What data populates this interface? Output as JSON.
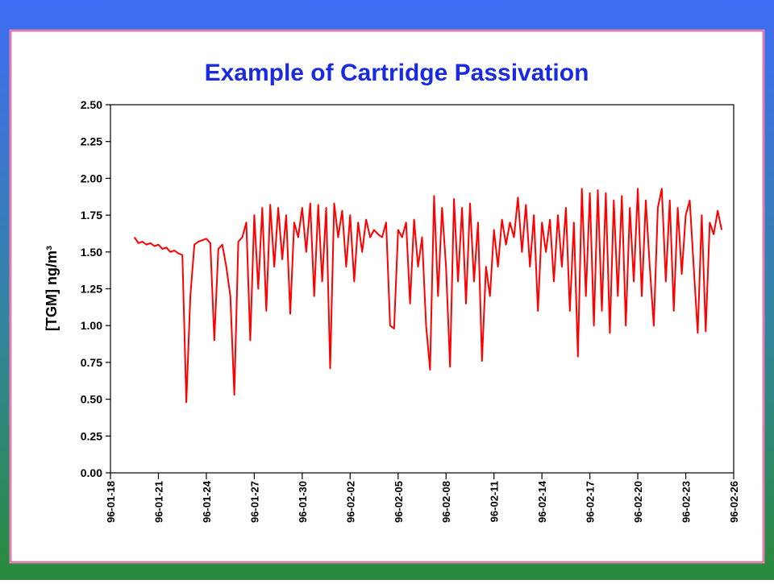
{
  "chart_data": {
    "type": "line",
    "title": "Example of Cartridge Passivation",
    "y_label": "[TGM] ng/m³",
    "x": [
      1.5,
      1.75,
      2,
      2.25,
      2.5,
      2.75,
      3,
      3.25,
      3.5,
      3.75,
      4,
      4.25,
      4.5,
      4.75,
      5,
      5.25,
      5.5,
      5.75,
      6,
      6.25,
      6.5,
      6.75,
      7,
      7.25,
      7.5,
      7.75,
      8,
      8.25,
      8.5,
      8.75,
      9,
      9.25,
      9.5,
      9.75,
      10,
      10.25,
      10.5,
      10.75,
      11,
      11.25,
      11.5,
      11.75,
      12,
      12.25,
      12.5,
      12.75,
      13,
      13.25,
      13.5,
      13.75,
      14,
      14.25,
      14.5,
      14.75,
      15,
      15.25,
      15.5,
      15.75,
      16,
      16.25,
      16.5,
      16.75,
      17,
      17.25,
      17.5,
      17.75,
      18,
      18.25,
      18.5,
      18.75,
      19,
      19.25,
      19.5,
      19.75,
      20,
      20.25,
      20.5,
      20.75,
      21,
      21.25,
      21.5,
      21.75,
      22,
      22.25,
      22.5,
      22.75,
      23,
      23.25,
      23.5,
      23.75,
      24,
      24.25,
      24.5,
      24.75,
      25,
      25.25,
      25.5,
      25.75,
      26,
      26.25,
      26.5,
      26.75,
      27,
      27.25,
      27.5,
      27.75,
      28,
      28.25,
      28.5,
      28.75,
      29,
      29.25,
      29.5,
      29.75,
      30,
      30.25,
      30.5,
      30.75,
      31,
      31.25,
      31.5,
      31.75,
      32,
      32.25,
      32.5,
      32.75,
      33,
      33.25,
      33.5,
      33.75,
      34,
      34.25,
      34.5,
      34.75,
      35,
      35.25,
      35.5,
      35.75,
      36,
      36.25,
      36.5,
      36.75,
      37,
      37.25,
      37.5,
      37.75,
      38,
      38.25
    ],
    "series": [
      {
        "color": "#ff0000",
        "values": [
          1.6,
          1.56,
          1.57,
          1.55,
          1.56,
          1.54,
          1.55,
          1.52,
          1.53,
          1.5,
          1.51,
          1.49,
          1.48,
          0.48,
          1.2,
          1.55,
          1.57,
          1.58,
          1.59,
          1.56,
          0.9,
          1.52,
          1.55,
          1.4,
          1.2,
          0.53,
          1.57,
          1.6,
          1.7,
          0.9,
          1.75,
          1.25,
          1.8,
          1.1,
          1.82,
          1.4,
          1.8,
          1.45,
          1.75,
          1.08,
          1.7,
          1.6,
          1.8,
          1.5,
          1.83,
          1.2,
          1.82,
          1.3,
          1.8,
          0.71,
          1.83,
          1.6,
          1.78,
          1.4,
          1.75,
          1.3,
          1.7,
          1.5,
          1.72,
          1.6,
          1.65,
          1.62,
          1.6,
          1.7,
          1.0,
          0.98,
          1.65,
          1.6,
          1.7,
          1.15,
          1.72,
          1.4,
          1.6,
          1.0,
          0.7,
          1.88,
          1.2,
          1.8,
          1.4,
          0.72,
          1.86,
          1.3,
          1.8,
          1.15,
          1.83,
          1.3,
          1.7,
          0.76,
          1.4,
          1.2,
          1.65,
          1.4,
          1.72,
          1.55,
          1.7,
          1.6,
          1.87,
          1.5,
          1.82,
          1.4,
          1.75,
          1.1,
          1.7,
          1.5,
          1.72,
          1.3,
          1.75,
          1.4,
          1.8,
          1.1,
          1.7,
          0.79,
          1.93,
          1.2,
          1.9,
          1.0,
          1.92,
          1.1,
          1.9,
          0.95,
          1.85,
          1.2,
          1.88,
          1.0,
          1.8,
          1.3,
          1.93,
          1.2,
          1.85,
          1.4,
          1.0,
          1.8,
          1.93,
          1.3,
          1.85,
          1.1,
          1.8,
          1.35,
          1.75,
          1.85,
          1.4,
          0.95,
          1.75,
          0.96,
          1.7,
          1.62,
          1.78,
          1.65
        ]
      }
    ],
    "xlim": [
      0,
      39
    ],
    "xticks": [
      {
        "value": 0,
        "label": "96-01-18"
      },
      {
        "value": 3,
        "label": "96-01-21"
      },
      {
        "value": 6,
        "label": "96-01-24"
      },
      {
        "value": 9,
        "label": "96-01-27"
      },
      {
        "value": 12,
        "label": "96-01-30"
      },
      {
        "value": 15,
        "label": "96-02-02"
      },
      {
        "value": 18,
        "label": "96-02-05"
      },
      {
        "value": 21,
        "label": "96-02-08"
      },
      {
        "value": 24,
        "label": "96-02-11"
      },
      {
        "value": 27,
        "label": "96-02-14"
      },
      {
        "value": 30,
        "label": "96-02-17"
      },
      {
        "value": 33,
        "label": "96-02-20"
      },
      {
        "value": 36,
        "label": "96-02-23"
      },
      {
        "value": 39,
        "label": "96-02-26"
      }
    ],
    "ylim": [
      0,
      2.5
    ],
    "yticks": [
      {
        "value": 0,
        "label": "0.00"
      },
      {
        "value": 0.25,
        "label": "0.25"
      },
      {
        "value": 0.5,
        "label": "0.50"
      },
      {
        "value": 0.75,
        "label": "0.75"
      },
      {
        "value": 1,
        "label": "1.00"
      },
      {
        "value": 1.25,
        "label": "1.25"
      },
      {
        "value": 1.5,
        "label": "1.50"
      },
      {
        "value": 1.75,
        "label": "1.75"
      },
      {
        "value": 2,
        "label": "2.00"
      },
      {
        "value": 2.25,
        "label": "2.25"
      },
      {
        "value": 2.5,
        "label": "2.50"
      }
    ]
  }
}
